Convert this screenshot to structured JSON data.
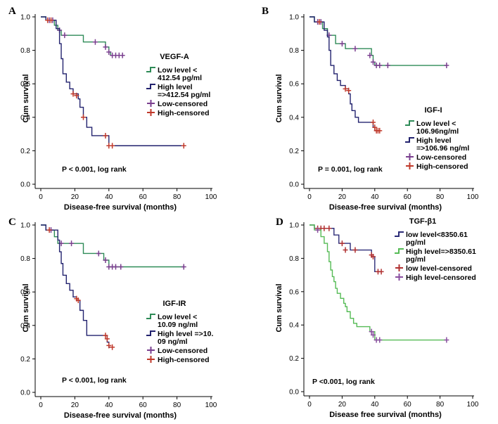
{
  "colors": {
    "low": "#2e8b57",
    "high": "#22226e",
    "low_censored": "#7a3f8f",
    "high_censored": "#c0392b",
    "d_low": "#2c2c78",
    "d_high": "#55bb55",
    "d_low_censored": "#b03030",
    "d_high_censored": "#8a4fa0"
  },
  "chart_data": [
    {
      "type": "line",
      "panel": "A",
      "xlabel": "Disease-free survival (months)",
      "ylabel": "Cum survival",
      "xlim": [
        0,
        100
      ],
      "ylim": [
        0,
        1
      ],
      "xticks": [
        "0",
        "20",
        "40",
        "60",
        "80",
        "100"
      ],
      "yticks": [
        "0.0",
        "0.2",
        "0.4",
        "0.6",
        "0.8",
        "1.0"
      ],
      "legend_title": "VEGF-A",
      "legend": [
        {
          "lines": [
            "Low level <",
            "412.54 pg/ml"
          ],
          "kind": "step",
          "color": "low"
        },
        {
          "lines": [
            "High level",
            "=>412.54 pg/ml"
          ],
          "kind": "step",
          "color": "high"
        },
        {
          "lines": [
            "Low-censored"
          ],
          "kind": "cross",
          "color": "low_censored"
        },
        {
          "lines": [
            "High-censored"
          ],
          "kind": "cross",
          "color": "high_censored"
        }
      ],
      "pvalue": "P < 0.001, log rank",
      "series": [
        {
          "role": "low",
          "color": "low",
          "censor_color": "low_censored",
          "steps": [
            [
              0,
              1.0
            ],
            [
              3,
              0.98
            ],
            [
              8,
              0.95
            ],
            [
              10,
              0.92
            ],
            [
              12,
              0.89
            ],
            [
              25,
              0.85
            ],
            [
              38,
              0.82
            ],
            [
              40,
              0.79
            ],
            [
              41,
              0.77
            ],
            [
              48,
              0.77
            ]
          ],
          "censors": [
            [
              5,
              0.98
            ],
            [
              7,
              0.98
            ],
            [
              11,
              0.92
            ],
            [
              14,
              0.89
            ],
            [
              32,
              0.85
            ],
            [
              38,
              0.82
            ],
            [
              40,
              0.79
            ],
            [
              42,
              0.77
            ],
            [
              44,
              0.77
            ],
            [
              46,
              0.77
            ],
            [
              48,
              0.77
            ]
          ]
        },
        {
          "role": "high",
          "color": "high",
          "censor_color": "high_censored",
          "steps": [
            [
              0,
              1.0
            ],
            [
              3,
              0.98
            ],
            [
              9,
              0.93
            ],
            [
              11,
              0.84
            ],
            [
              12,
              0.75
            ],
            [
              13,
              0.66
            ],
            [
              15,
              0.61
            ],
            [
              17,
              0.57
            ],
            [
              19,
              0.54
            ],
            [
              22,
              0.51
            ],
            [
              23,
              0.46
            ],
            [
              25,
              0.4
            ],
            [
              27,
              0.34
            ],
            [
              30,
              0.29
            ],
            [
              36,
              0.29
            ],
            [
              40,
              0.23
            ],
            [
              84,
              0.23
            ]
          ],
          "censors": [
            [
              4,
              0.98
            ],
            [
              6,
              0.98
            ],
            [
              19,
              0.54
            ],
            [
              21,
              0.53
            ],
            [
              25,
              0.4
            ],
            [
              38,
              0.29
            ],
            [
              40,
              0.23
            ],
            [
              42,
              0.23
            ],
            [
              84,
              0.23
            ]
          ]
        }
      ]
    },
    {
      "type": "line",
      "panel": "B",
      "xlabel": "Disease-free survival (months)",
      "ylabel": "Cum survival",
      "xlim": [
        0,
        100
      ],
      "ylim": [
        0,
        1
      ],
      "xticks": [
        "0",
        "20",
        "40",
        "60",
        "80",
        "100"
      ],
      "yticks": [
        "0.0",
        "0.2",
        "0.4",
        "0.6",
        "0.8",
        "1.0"
      ],
      "legend_title": "IGF-I",
      "legend": [
        {
          "lines": [
            "Low level <",
            "106.96ng/ml"
          ],
          "kind": "step",
          "color": "low"
        },
        {
          "lines": [
            "High level",
            "=>106.96 ng/ml"
          ],
          "kind": "step",
          "color": "high"
        },
        {
          "lines": [
            "Low-censored"
          ],
          "kind": "cross",
          "color": "low_censored"
        },
        {
          "lines": [
            "High-censored"
          ],
          "kind": "cross",
          "color": "high_censored"
        }
      ],
      "pvalue": "P = 0.001, log rank",
      "series": [
        {
          "role": "low",
          "color": "low",
          "censor_color": "low_censored",
          "steps": [
            [
              0,
              1.0
            ],
            [
              3,
              0.97
            ],
            [
              8,
              0.93
            ],
            [
              11,
              0.89
            ],
            [
              16,
              0.84
            ],
            [
              22,
              0.81
            ],
            [
              38,
              0.77
            ],
            [
              39,
              0.73
            ],
            [
              40,
              0.71
            ],
            [
              84,
              0.71
            ]
          ],
          "censors": [
            [
              5,
              0.97
            ],
            [
              7,
              0.97
            ],
            [
              12,
              0.89
            ],
            [
              20,
              0.84
            ],
            [
              28,
              0.81
            ],
            [
              37,
              0.77
            ],
            [
              39,
              0.73
            ],
            [
              41,
              0.71
            ],
            [
              43,
              0.71
            ],
            [
              48,
              0.71
            ],
            [
              84,
              0.71
            ]
          ]
        },
        {
          "role": "high",
          "color": "high",
          "censor_color": "high_censored",
          "steps": [
            [
              0,
              1.0
            ],
            [
              3,
              0.97
            ],
            [
              9,
              0.92
            ],
            [
              11,
              0.88
            ],
            [
              12,
              0.8
            ],
            [
              13,
              0.71
            ],
            [
              15,
              0.66
            ],
            [
              17,
              0.62
            ],
            [
              19,
              0.59
            ],
            [
              22,
              0.57
            ],
            [
              24,
              0.54
            ],
            [
              25,
              0.48
            ],
            [
              26,
              0.44
            ],
            [
              28,
              0.4
            ],
            [
              30,
              0.37
            ],
            [
              39,
              0.34
            ],
            [
              40,
              0.32
            ],
            [
              43,
              0.32
            ]
          ],
          "censors": [
            [
              6,
              0.97
            ],
            [
              22,
              0.57
            ],
            [
              24,
              0.56
            ],
            [
              39,
              0.37
            ],
            [
              40,
              0.34
            ],
            [
              41,
              0.32
            ],
            [
              42,
              0.32
            ],
            [
              43,
              0.32
            ]
          ]
        }
      ]
    },
    {
      "type": "line",
      "panel": "C",
      "xlabel": "Disease-free survival (months)",
      "ylabel": "Cum survival",
      "xlim": [
        0,
        100
      ],
      "ylim": [
        0,
        1
      ],
      "xticks": [
        "0",
        "20",
        "40",
        "60",
        "80",
        "100"
      ],
      "yticks": [
        "0.0",
        "0.2",
        "0.4",
        "0.6",
        "0.8",
        "1.0"
      ],
      "legend_title": "IGF-IR",
      "legend": [
        {
          "lines": [
            "Low level <",
            "10.09 ng/ml"
          ],
          "kind": "step",
          "color": "low"
        },
        {
          "lines": [
            "High level =>10.",
            "09 ng/ml"
          ],
          "kind": "step",
          "color": "high"
        },
        {
          "lines": [
            "Low-censored"
          ],
          "kind": "cross",
          "color": "low_censored"
        },
        {
          "lines": [
            "High-censored"
          ],
          "kind": "cross",
          "color": "high_censored"
        }
      ],
      "pvalue": "P < 0.001, log rank",
      "series": [
        {
          "role": "low",
          "color": "low",
          "censor_color": "low_censored",
          "steps": [
            [
              0,
              1.0
            ],
            [
              3,
              0.97
            ],
            [
              8,
              0.93
            ],
            [
              10,
              0.89
            ],
            [
              25,
              0.83
            ],
            [
              37,
              0.79
            ],
            [
              40,
              0.75
            ],
            [
              84,
              0.75
            ]
          ],
          "censors": [
            [
              6,
              0.97
            ],
            [
              12,
              0.89
            ],
            [
              18,
              0.89
            ],
            [
              34,
              0.83
            ],
            [
              38,
              0.79
            ],
            [
              40,
              0.75
            ],
            [
              42,
              0.75
            ],
            [
              44,
              0.75
            ],
            [
              47,
              0.75
            ],
            [
              84,
              0.75
            ]
          ]
        },
        {
          "role": "high",
          "color": "high",
          "censor_color": "high_censored",
          "steps": [
            [
              0,
              1.0
            ],
            [
              3,
              0.97
            ],
            [
              10,
              0.91
            ],
            [
              11,
              0.84
            ],
            [
              12,
              0.77
            ],
            [
              13,
              0.7
            ],
            [
              15,
              0.65
            ],
            [
              17,
              0.61
            ],
            [
              19,
              0.57
            ],
            [
              21,
              0.55
            ],
            [
              23,
              0.49
            ],
            [
              25,
              0.43
            ],
            [
              27,
              0.34
            ],
            [
              39,
              0.3
            ],
            [
              40,
              0.27
            ],
            [
              42,
              0.27
            ]
          ],
          "censors": [
            [
              5,
              0.97
            ],
            [
              21,
              0.56
            ],
            [
              22,
              0.55
            ],
            [
              38,
              0.34
            ],
            [
              39,
              0.32
            ],
            [
              40,
              0.28
            ],
            [
              42,
              0.27
            ]
          ]
        }
      ]
    },
    {
      "type": "line",
      "panel": "D",
      "xlabel": "Disease free survival (months)",
      "ylabel": "Cum survival",
      "xlim": [
        0,
        100
      ],
      "ylim": [
        0,
        1
      ],
      "xticks": [
        "0",
        "20",
        "40",
        "60",
        "80",
        "100"
      ],
      "yticks": [
        "0.0",
        "0.2",
        "0.4",
        "0.6",
        "0.8",
        "1.0"
      ],
      "legend_title": "TGF-β1",
      "legend": [
        {
          "lines": [
            "low level<8350.61",
            "pg/ml"
          ],
          "kind": "step",
          "color": "d_low"
        },
        {
          "lines": [
            "High level=>8350.61",
            "pg/ml"
          ],
          "kind": "step",
          "color": "d_high"
        },
        {
          "lines": [
            "low level-censored"
          ],
          "kind": "cross",
          "color": "d_low_censored"
        },
        {
          "lines": [
            "High level-censored"
          ],
          "kind": "cross",
          "color": "d_high_censored"
        }
      ],
      "pvalue": "P <0.001, log rank",
      "series": [
        {
          "role": "low",
          "color": "d_low",
          "censor_color": "d_low_censored",
          "steps": [
            [
              0,
              1.0
            ],
            [
              3,
              0.98
            ],
            [
              15,
              0.94
            ],
            [
              18,
              0.89
            ],
            [
              25,
              0.85
            ],
            [
              38,
              0.81
            ],
            [
              40,
              0.72
            ],
            [
              44,
              0.72
            ]
          ],
          "censors": [
            [
              5,
              0.98
            ],
            [
              7,
              0.98
            ],
            [
              9,
              0.98
            ],
            [
              12,
              0.98
            ],
            [
              20,
              0.89
            ],
            [
              22,
              0.85
            ],
            [
              28,
              0.85
            ],
            [
              38,
              0.82
            ],
            [
              39,
              0.81
            ],
            [
              42,
              0.72
            ],
            [
              44,
              0.72
            ]
          ]
        },
        {
          "role": "high",
          "color": "d_high",
          "censor_color": "d_high_censored",
          "steps": [
            [
              0,
              1.0
            ],
            [
              3,
              0.97
            ],
            [
              7,
              0.93
            ],
            [
              9,
              0.89
            ],
            [
              11,
              0.84
            ],
            [
              12,
              0.78
            ],
            [
              13,
              0.73
            ],
            [
              14,
              0.69
            ],
            [
              15,
              0.66
            ],
            [
              16,
              0.62
            ],
            [
              17,
              0.59
            ],
            [
              19,
              0.56
            ],
            [
              21,
              0.53
            ],
            [
              22,
              0.51
            ],
            [
              23,
              0.48
            ],
            [
              25,
              0.44
            ],
            [
              27,
              0.41
            ],
            [
              29,
              0.39
            ],
            [
              37,
              0.36
            ],
            [
              40,
              0.31
            ],
            [
              84,
              0.31
            ]
          ],
          "censors": [
            [
              5,
              0.97
            ],
            [
              38,
              0.36
            ],
            [
              39,
              0.34
            ],
            [
              41,
              0.31
            ],
            [
              43,
              0.31
            ],
            [
              84,
              0.31
            ]
          ]
        }
      ]
    }
  ]
}
